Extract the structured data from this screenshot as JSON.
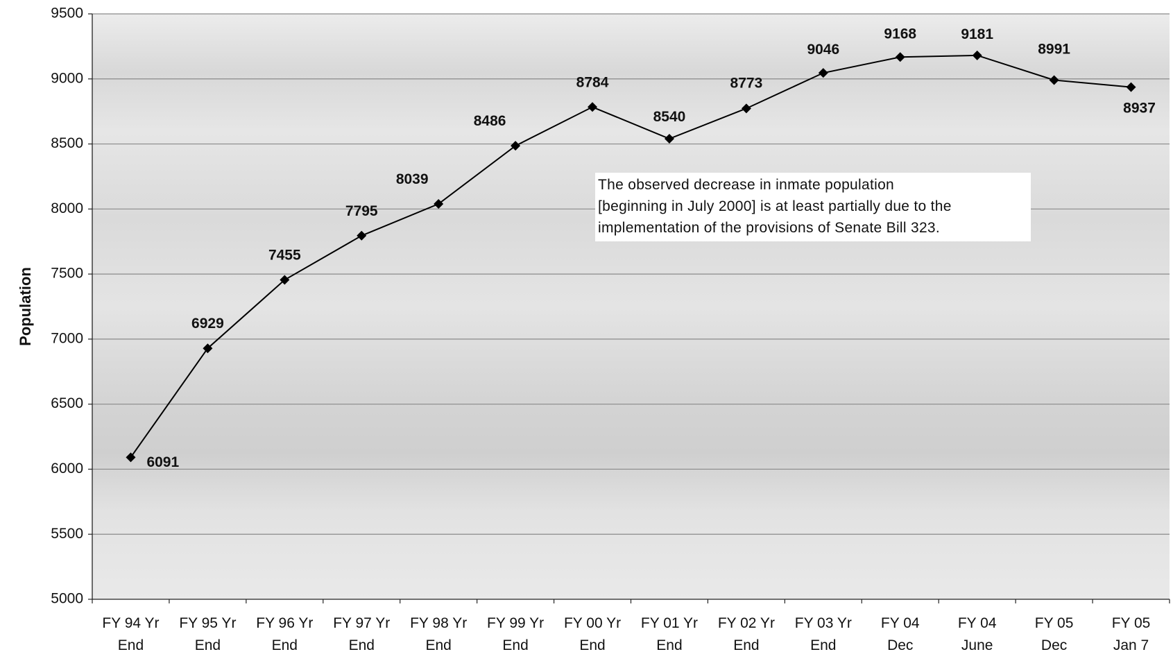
{
  "chart_data": {
    "type": "line",
    "ylabel": "Population",
    "xlabel": "",
    "ylim": [
      5000,
      9500
    ],
    "yticks": [
      "5000",
      "5500",
      "6000",
      "6500",
      "7000",
      "7500",
      "8000",
      "8500",
      "9000",
      "9500"
    ],
    "grid": "horizontal",
    "categories": [
      [
        "FY 94 Yr",
        "End"
      ],
      [
        "FY 95 Yr",
        "End"
      ],
      [
        "FY 96 Yr",
        "End"
      ],
      [
        "FY 97 Yr",
        "End"
      ],
      [
        "FY 98 Yr",
        "End"
      ],
      [
        "FY 99 Yr",
        "End"
      ],
      [
        "FY 00 Yr",
        "End"
      ],
      [
        "FY 01 Yr",
        "End"
      ],
      [
        "FY 02 Yr",
        "End"
      ],
      [
        "FY 03 Yr",
        "End"
      ],
      [
        "FY 04",
        "Dec"
      ],
      [
        "FY 04",
        "June"
      ],
      [
        "FY 05",
        "Dec"
      ],
      [
        "FY 05",
        "Jan 7"
      ]
    ],
    "series": [
      {
        "values": [
          6091,
          6929,
          7455,
          7795,
          8039,
          8486,
          8784,
          8540,
          8773,
          9046,
          9168,
          9181,
          8991,
          8937
        ],
        "color": "#000000",
        "marker": "diamond"
      }
    ],
    "annotation": {
      "lines": [
        "The observed decrease in inmate population",
        "[beginning in July 2000] is at least partially due to the",
        "implementation of the provisions of Senate Bill 323."
      ]
    }
  }
}
